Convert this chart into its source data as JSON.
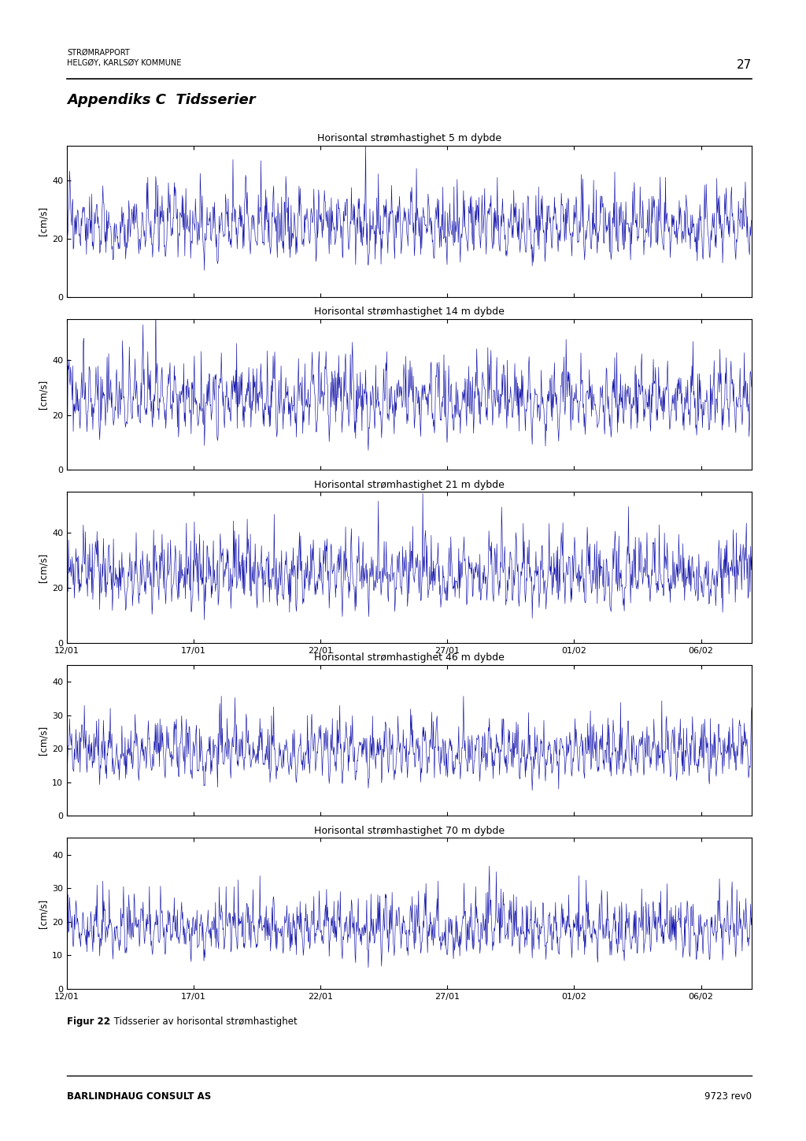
{
  "page_title_line1_display": "STRØMRAPPORT",
  "page_title_line2_display": "HELGØY, KARLSØY KOMMUNE",
  "page_number": "27",
  "section_title": "Appendiks C  Tidsserier",
  "plots": [
    {
      "title": "Horisontal strømhastighet 5 m dybde",
      "ylabel": "[cm/s]",
      "ylim": [
        0,
        52
      ],
      "yticks": [
        0,
        20,
        40
      ],
      "has_xticklabels": false,
      "seed": 1,
      "base_mean": 20,
      "base_amp": 12,
      "noise_std": 8
    },
    {
      "title": "Horisontal strømhastighet 14 m dybde",
      "ylabel": "[cm/s]",
      "ylim": [
        0,
        55
      ],
      "yticks": [
        0,
        20,
        40
      ],
      "has_xticklabels": false,
      "seed": 2,
      "base_mean": 18,
      "base_amp": 13,
      "noise_std": 9
    },
    {
      "title": "Horisontal strømhastighet 21 m dybde",
      "ylabel": "[cm/s]",
      "ylim": [
        0,
        55
      ],
      "yticks": [
        0,
        20,
        40
      ],
      "has_xticklabels": true,
      "seed": 3,
      "base_mean": 18,
      "base_amp": 12,
      "noise_std": 9
    },
    {
      "title": "Horisontal strømhastighet 46 m dybde",
      "ylabel": "[cm/s]",
      "ylim": [
        0,
        45
      ],
      "yticks": [
        0,
        10,
        20,
        30,
        40
      ],
      "has_xticklabels": false,
      "seed": 4,
      "base_mean": 15,
      "base_amp": 9,
      "noise_std": 6
    },
    {
      "title": "Horisontal strømhastighet 70 m dybde",
      "ylabel": "[cm/s]",
      "ylim": [
        0,
        45
      ],
      "yticks": [
        0,
        10,
        20,
        30,
        40
      ],
      "has_xticklabels": true,
      "seed": 5,
      "base_mean": 14,
      "base_amp": 8,
      "noise_std": 6
    }
  ],
  "xtick_labels": [
    "12/01",
    "17/01",
    "22/01",
    "27/01",
    "01/02",
    "06/02"
  ],
  "xtick_positions_days": [
    0.0,
    5.0,
    10.0,
    15.0,
    20.0,
    25.0
  ],
  "n_days": 27,
  "samples_per_day": 48,
  "line_color": "#1010AA",
  "background_color": "#ffffff",
  "footer_left": "BARLINDHAUG CONSULT AS",
  "footer_right": "9723 rev0",
  "figure_caption": "Figur 22: Tidsserier av horisontal strømhastighet",
  "header_line1": "STRØMRAPPORT",
  "header_line2": "HELGØY, KARLSØY KOMMUNE"
}
